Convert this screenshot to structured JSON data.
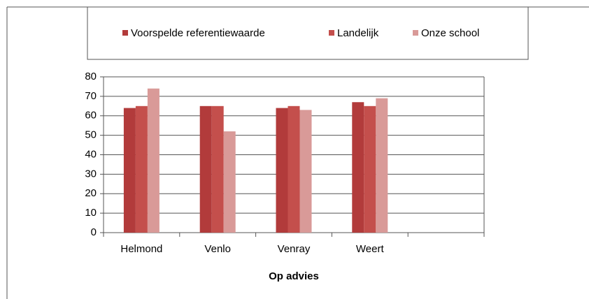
{
  "chart_data": {
    "type": "bar",
    "x_label": "Op advies",
    "categories": [
      "Helmond",
      "Venlo",
      "Venray",
      "Weert",
      null
    ],
    "series": [
      {
        "name": "Voorspelde referentiewaarde",
        "color": "#b23b3b",
        "values": [
          64,
          65,
          64,
          67,
          null
        ]
      },
      {
        "name": "Landelijk",
        "color": "#c44f4c",
        "values": [
          65,
          65,
          65,
          65,
          null
        ]
      },
      {
        "name": "Onze school",
        "color": "#d99a98",
        "values": [
          74,
          52,
          63,
          69,
          null
        ]
      }
    ],
    "ylim": [
      0,
      80
    ],
    "yticks": [
      0,
      10,
      20,
      30,
      40,
      50,
      60,
      70,
      80
    ],
    "grid": true
  }
}
